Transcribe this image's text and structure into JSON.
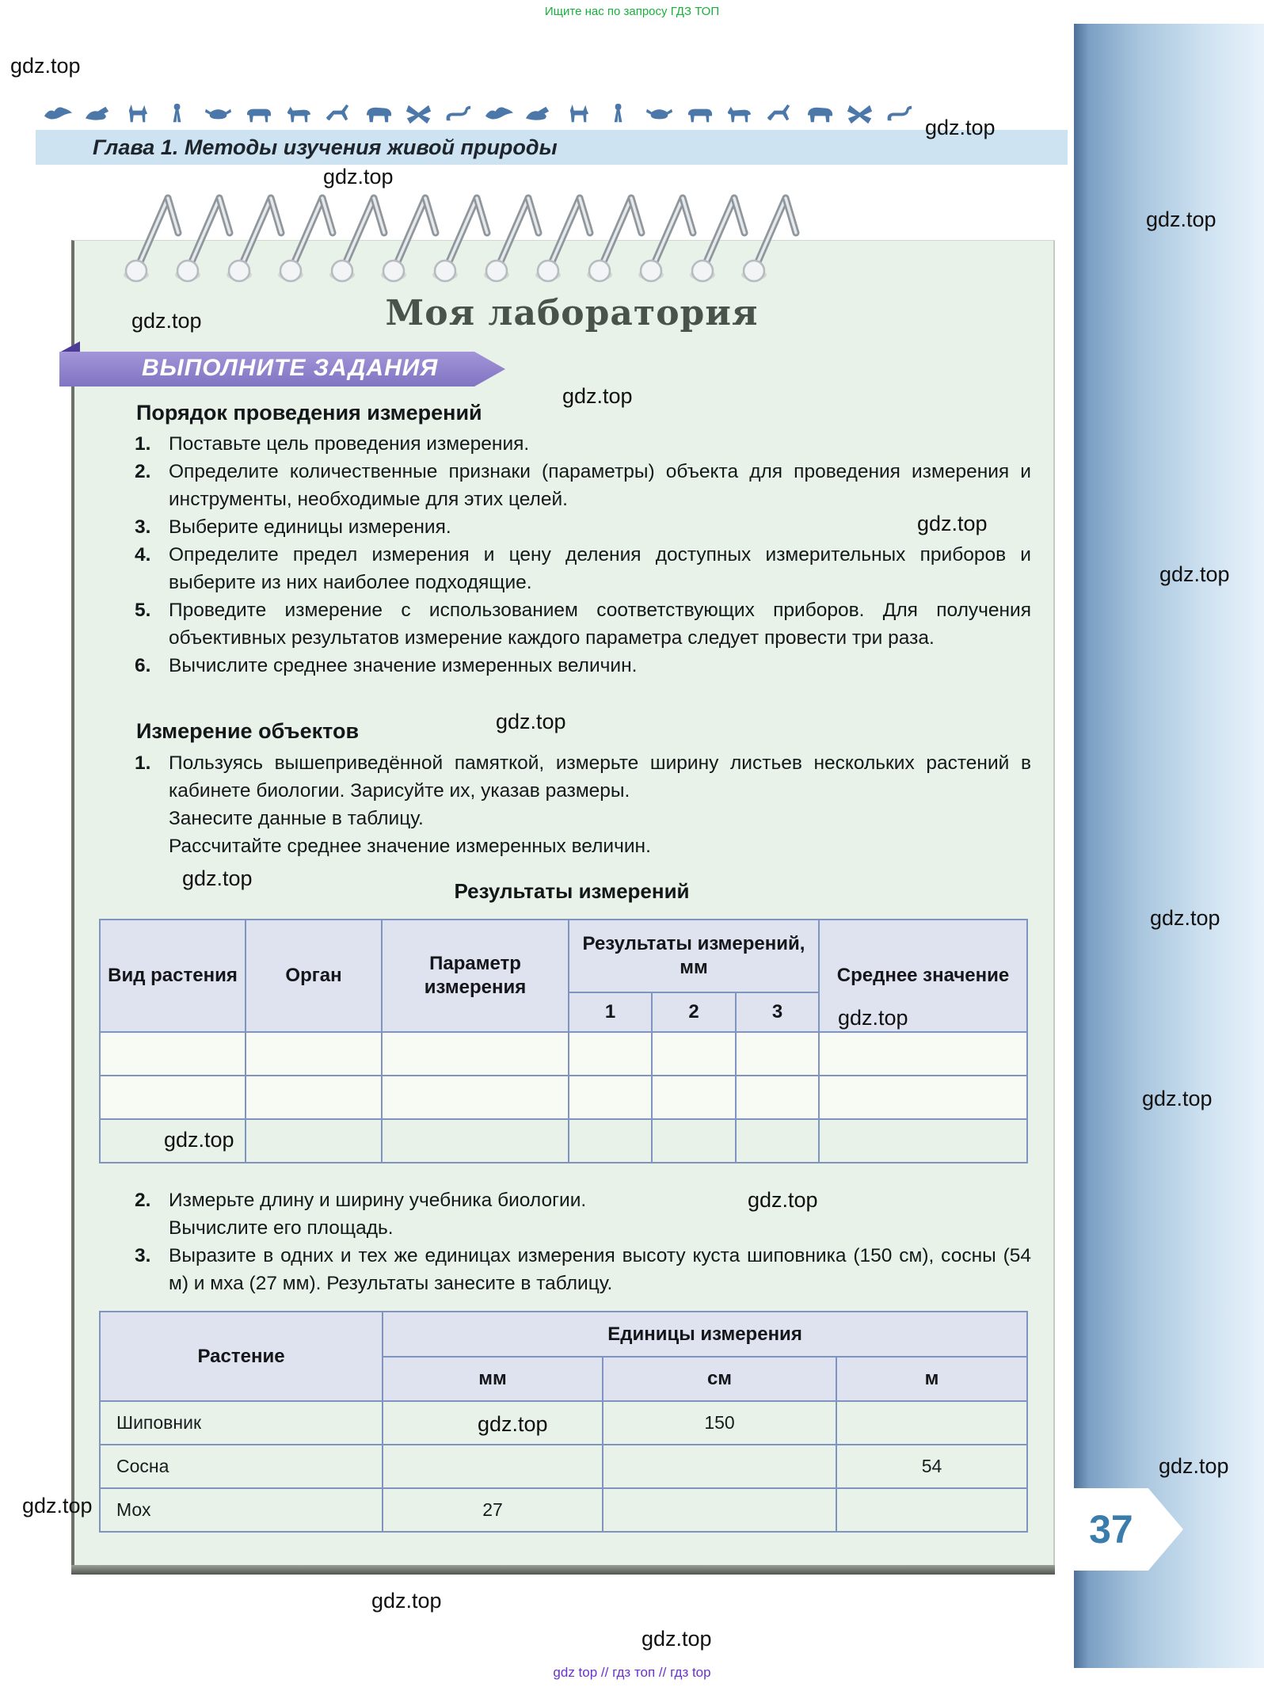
{
  "meta": {
    "promo": "Ищите нас по запросу ГДЗ ТОП",
    "watermark": "gdz.top",
    "footer": "gdz top  //  гдз топ  //  гдз top"
  },
  "header": {
    "chapter": "Глава 1. Методы изучения живой природы",
    "animals": [
      "bird",
      "seal",
      "antelope",
      "meerkat",
      "crab",
      "boar",
      "horse",
      "deer",
      "bison",
      "butterfly",
      "scorpion",
      "bird",
      "seal",
      "antelope",
      "meerkat",
      "crab",
      "boar",
      "horse",
      "deer",
      "bison",
      "butterfly",
      "scorpion"
    ]
  },
  "notebook": {
    "coil_count": 13,
    "title": "Моя лаборатория",
    "banner": "ВЫПОЛНИТЕ ЗАДАНИЯ",
    "page_number": "37"
  },
  "procedure": {
    "heading": "Порядок проведения измерений",
    "items": [
      {
        "n": "1.",
        "text": "Поставьте цель проведения измерения."
      },
      {
        "n": "2.",
        "text": "Определите количественные признаки (параметры) объекта для проведения измерения и инструменты, необходимые для этих целей."
      },
      {
        "n": "3.",
        "text": "Выберите единицы измерения."
      },
      {
        "n": "4.",
        "text": "Определите предел измерения и цену деления доступных измерительных приборов и выберите из них наиболее подходящие."
      },
      {
        "n": "5.",
        "text": "Проведите измерение с использованием соответствующих приборов. Для получения объективных результатов измерение каждого параметра следует провести три раза."
      },
      {
        "n": "6.",
        "text": "Вычислите среднее значение измеренных величин."
      }
    ]
  },
  "measuring": {
    "heading": "Измерение объектов",
    "item1": {
      "n": "1.",
      "p1": "Пользуясь вышеприведённой памяткой, измерьте ширину листьев нескольких растений в кабинете биологии. Зарисуйте их, указав размеры.",
      "p2": "Занесите данные в таблицу.",
      "p3": "Рассчитайте среднее значение измеренных величин."
    },
    "item2": {
      "n": "2.",
      "l1": "Измерьте длину и ширину учебника биологии.",
      "l2": "Вычислите его площадь."
    },
    "item3": {
      "n": "3.",
      "text": "Выразите в одних и тех же единицах измерения высоту куста шиповника (150 см), сосны (54 м) и мха (27 мм). Результаты занесите в таблицу."
    }
  },
  "table1": {
    "title": "Результаты измерений",
    "col_species": "Вид растения",
    "col_organ": "Орган",
    "col_param": "Параметр измерения",
    "col_results": "Результаты измерений, мм",
    "sub": [
      "1",
      "2",
      "3"
    ],
    "col_mean": "Среднее значение"
  },
  "table2": {
    "col_plant": "Растение",
    "col_units": "Единицы измерения",
    "sub": [
      "мм",
      "см",
      "м"
    ],
    "rows": [
      {
        "plant": "Шиповник",
        "mm": "",
        "cm": "150",
        "m": ""
      },
      {
        "plant": "Сосна",
        "mm": "",
        "cm": "",
        "m": "54"
      },
      {
        "plant": "Мох",
        "mm": "27",
        "cm": "",
        "m": ""
      }
    ]
  },
  "colors": {
    "accent_purple": "#8174c2",
    "chapter_bar": "#cde3f2",
    "page_mint": "#e9f2e8",
    "table_border": "#8094c0",
    "sidebar_blue": "#7ba0c4",
    "page_number_blue": "#3a7dad",
    "promo_green": "#17b13c",
    "footer_purple": "#6b32cf"
  }
}
